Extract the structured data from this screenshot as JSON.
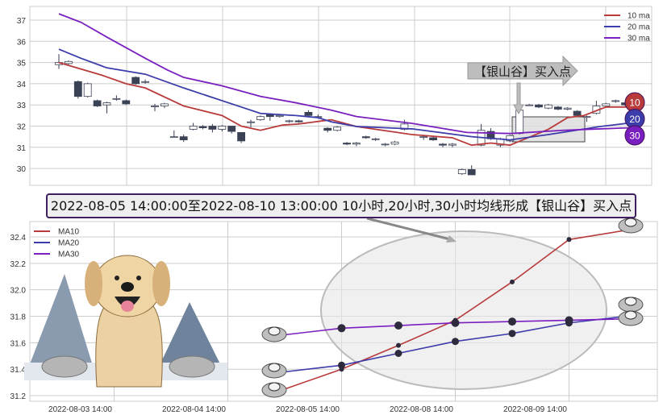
{
  "colors": {
    "ma10": "#b83a3a",
    "ma20": "#3c3caa",
    "ma30": "#7a1fbf",
    "up_fill": "#ffffff",
    "down_fill": "#3b4256",
    "grid": "#cccccc"
  },
  "chart_data": [
    {
      "type": "candlestick",
      "ylim": [
        29.3,
        37.6
      ],
      "yticks": [
        30,
        31,
        32,
        33,
        34,
        35,
        36,
        37
      ],
      "grid": true,
      "legend_placement": "top-right",
      "legend": [
        "10 ma",
        "20 ma",
        "30 ma"
      ],
      "candles": [
        [
          34.9,
          35.0,
          35.4,
          34.7
        ],
        [
          34.95,
          35.05,
          35.1,
          34.9
        ],
        [
          34.1,
          33.4,
          34.15,
          33.3
        ],
        [
          33.4,
          34.0,
          34.05,
          33.35
        ],
        [
          33.2,
          32.95,
          33.25,
          32.9
        ],
        [
          33.0,
          33.1,
          33.15,
          32.6
        ],
        [
          33.3,
          33.3,
          33.45,
          33.2
        ],
        [
          33.2,
          33.05,
          33.25,
          33.0
        ],
        [
          34.3,
          34.0,
          34.35,
          33.95
        ],
        [
          34.1,
          34.1,
          34.2,
          34.0
        ],
        [
          32.95,
          32.95,
          33.05,
          32.7
        ],
        [
          32.95,
          33.05,
          33.1,
          32.85
        ],
        [
          31.5,
          31.5,
          31.8,
          31.5
        ],
        [
          31.5,
          31.35,
          31.6,
          31.25
        ],
        [
          31.85,
          32.0,
          32.15,
          31.8
        ],
        [
          31.98,
          31.92,
          32.05,
          31.85
        ],
        [
          32.0,
          31.85,
          32.1,
          31.7
        ],
        [
          31.85,
          32.0,
          32.05,
          31.75
        ],
        [
          32.0,
          31.75,
          32.0,
          31.65
        ],
        [
          31.7,
          31.3,
          31.7,
          31.2
        ],
        [
          32.2,
          32.2,
          32.3,
          31.95
        ],
        [
          32.3,
          32.45,
          32.5,
          32.25
        ],
        [
          32.55,
          32.45,
          32.6,
          32.25
        ],
        [
          32.45,
          32.5,
          32.55,
          32.4
        ],
        [
          32.25,
          32.25,
          32.3,
          32.15
        ],
        [
          32.25,
          32.2,
          32.3,
          32.15
        ],
        [
          32.65,
          32.5,
          32.75,
          32.45
        ],
        [
          32.45,
          32.45,
          32.55,
          32.35
        ],
        [
          31.9,
          31.8,
          31.95,
          31.7
        ],
        [
          31.8,
          31.95,
          32.0,
          31.75
        ],
        [
          31.2,
          31.15,
          31.25,
          31.1
        ],
        [
          31.15,
          31.2,
          31.25,
          31.05
        ],
        [
          31.5,
          31.45,
          31.55,
          31.4
        ],
        [
          31.4,
          31.4,
          31.45,
          31.3
        ],
        [
          31.15,
          31.15,
          31.2,
          31.05
        ],
        [
          31.15,
          31.25,
          31.3,
          31.1
        ],
        [
          31.85,
          32.1,
          32.3,
          31.8
        ],
        null,
        [
          31.5,
          31.5,
          31.55,
          31.35
        ],
        [
          31.45,
          31.35,
          31.5,
          31.3
        ],
        [
          31.15,
          31.1,
          31.2,
          31.0
        ],
        [
          31.1,
          31.15,
          31.2,
          31.0
        ],
        [
          29.75,
          29.95,
          30.0,
          29.7
        ],
        [
          29.95,
          29.7,
          30.15,
          29.7
        ],
        [
          31.1,
          31.8,
          32.1,
          31.05
        ],
        [
          31.75,
          31.4,
          31.9,
          31.35
        ],
        [
          31.1,
          31.4,
          31.45,
          31.0
        ],
        [
          31.3,
          31.55,
          31.6,
          31.25
        ],
        [
          31.65,
          32.75,
          32.8,
          31.6
        ],
        [
          33.0,
          33.0,
          33.05,
          32.95
        ],
        [
          33.0,
          32.9,
          33.05,
          32.85
        ],
        [
          32.85,
          33.0,
          33.05,
          32.8
        ],
        [
          32.9,
          32.8,
          32.95,
          32.75
        ],
        [
          32.8,
          32.85,
          32.9,
          32.75
        ],
        [
          32.7,
          32.5,
          32.75,
          32.45
        ],
        [
          32.45,
          32.45,
          32.5,
          32.2
        ],
        [
          32.6,
          32.95,
          33.2,
          32.55
        ],
        [
          32.95,
          33.05,
          33.1,
          32.9
        ],
        [
          33.2,
          33.2,
          33.25,
          33.1
        ],
        [
          33.1,
          33.0,
          33.15,
          32.95
        ]
      ],
      "ma_lines": {
        "ma10": [
          [
            0,
            35.0
          ],
          [
            4.5,
            34.4
          ],
          [
            7,
            34.0
          ],
          [
            9,
            33.8
          ],
          [
            13,
            32.95
          ],
          [
            17,
            32.5
          ],
          [
            19,
            32.0
          ],
          [
            21,
            31.8
          ],
          [
            23.3,
            32.05
          ],
          [
            25,
            32.1
          ],
          [
            27.5,
            32.25
          ],
          [
            28.4,
            32.3
          ],
          [
            31,
            31.98
          ],
          [
            36.8,
            31.6
          ],
          [
            41,
            31.45
          ],
          [
            43,
            31.1
          ],
          [
            45,
            31.2
          ],
          [
            47,
            31.1
          ],
          [
            51,
            31.85
          ],
          [
            53,
            32.4
          ],
          [
            54.7,
            32.5
          ],
          [
            57,
            32.9
          ],
          [
            59.5,
            32.9
          ]
        ],
        "ma20": [
          [
            0,
            35.63
          ],
          [
            2.3,
            35.2
          ],
          [
            5,
            34.75
          ],
          [
            7,
            34.6
          ],
          [
            9,
            34.45
          ],
          [
            13,
            33.8
          ],
          [
            15,
            33.5
          ],
          [
            17,
            33.2
          ],
          [
            19,
            32.9
          ],
          [
            21,
            32.6
          ],
          [
            24.7,
            32.5
          ],
          [
            27,
            32.4
          ],
          [
            28.4,
            32.2
          ],
          [
            31,
            31.98
          ],
          [
            36.8,
            31.87
          ],
          [
            43,
            31.5
          ],
          [
            47,
            31.35
          ],
          [
            51,
            31.6
          ],
          [
            56.4,
            31.98
          ],
          [
            59.5,
            32.15
          ]
        ],
        "ma30": [
          [
            0,
            37.3
          ],
          [
            2.3,
            36.9
          ],
          [
            5,
            36.2
          ],
          [
            7,
            35.7
          ],
          [
            9,
            35.2
          ],
          [
            11.3,
            34.65
          ],
          [
            13,
            34.3
          ],
          [
            17,
            33.9
          ],
          [
            21,
            33.4
          ],
          [
            24.7,
            33.1
          ],
          [
            28.4,
            32.75
          ],
          [
            31,
            32.45
          ],
          [
            36.8,
            32.13
          ],
          [
            42.5,
            31.7
          ],
          [
            47,
            31.65
          ],
          [
            52.5,
            31.8
          ],
          [
            56.4,
            31.87
          ],
          [
            59.5,
            31.92
          ]
        ]
      },
      "badges": [
        "10",
        "20",
        "30"
      ],
      "annotation": "【银山谷】买入点"
    },
    {
      "type": "line",
      "ylim": [
        31.17,
        32.53
      ],
      "yticks": [
        "31.2",
        "31.4",
        "31.6",
        "31.8",
        "32.0",
        "32.2",
        "32.4"
      ],
      "xticks": [
        {
          "pos": -3,
          "label": "2022-08-03 14:00"
        },
        {
          "pos": -1,
          "label": "2022-08-04 14:00"
        },
        {
          "pos": 1,
          "label": "2022-08-05 14:00"
        },
        {
          "pos": 3,
          "label": "2022-08-08 14:00"
        },
        {
          "pos": 5,
          "label": "2022-08-09 14:00"
        }
      ],
      "grid": true,
      "legend_placement": "top-left",
      "series": [
        {
          "name": "MA10",
          "values": [
            31.25,
            31.4,
            31.58,
            31.77,
            32.06,
            32.38,
            32.45
          ]
        },
        {
          "name": "MA20",
          "values": [
            31.38,
            31.43,
            31.52,
            31.61,
            31.67,
            31.75,
            31.8
          ]
        },
        {
          "name": "MA30",
          "values": [
            31.66,
            31.71,
            31.73,
            31.75,
            31.76,
            31.77,
            31.78
          ]
        }
      ]
    }
  ],
  "banner": "2022-08-05 14:00:00至2022-08-10 13:00:00 10小时,20小时,30小时均线形成【银山谷】买入点"
}
